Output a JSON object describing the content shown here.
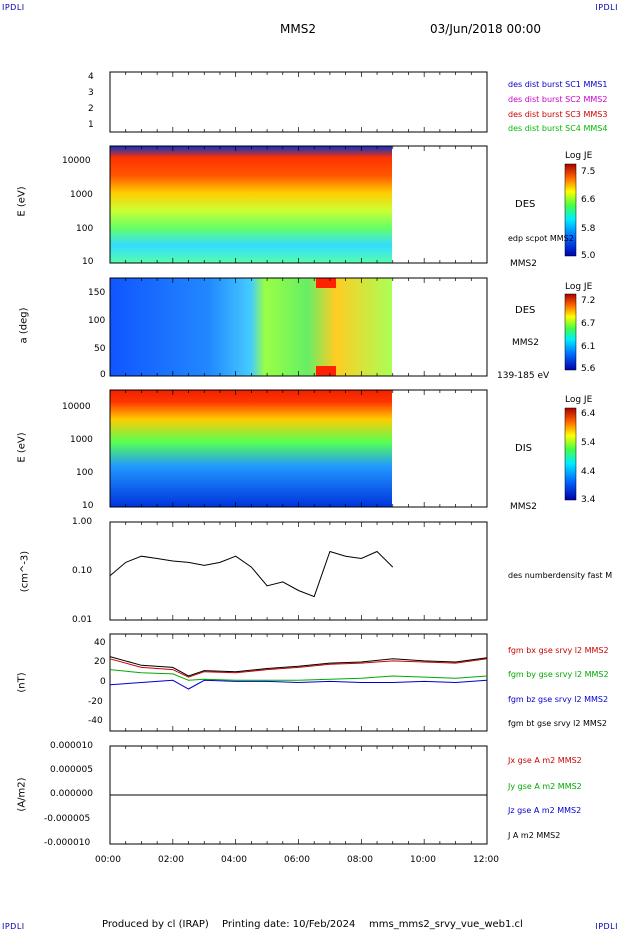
{
  "corners": {
    "tl": "IPDLI",
    "tr": "IPDLI",
    "bl": "IPDLI",
    "br": "IPDLI"
  },
  "header": {
    "spacecraft": "MMS2",
    "date": "03/Jun/2018 00:00"
  },
  "footer": {
    "produced": "Produced by cl (IRAP)",
    "printing": "Printing date: 10/Feb/2024",
    "file": "mms_mms2_srvy_vue_web1.cl"
  },
  "panels": {
    "p1": {
      "yticks": [
        "4",
        "3",
        "2",
        "1"
      ],
      "legend": [
        {
          "text": "des dist burst SC1 MMS1",
          "color": "#0000cc"
        },
        {
          "text": "des dist burst SC2 MMS2",
          "color": "#cc00cc"
        },
        {
          "text": "des dist burst SC3 MMS3",
          "color": "#cc0000"
        },
        {
          "text": "des dist burst SC4 MMS4",
          "color": "#00bb00"
        }
      ]
    },
    "p2": {
      "ylabel": "E (eV)",
      "yticks": [
        "10000",
        "1000",
        "100",
        "10"
      ],
      "label1": "DES",
      "label2": "edp scpot MMS2",
      "label3": "MMS2",
      "cbar": {
        "title": "Log JE",
        "ticks": [
          "7.5",
          "6.6",
          "5.8",
          "5.0"
        ]
      }
    },
    "p3": {
      "ylabel": "a (deg)",
      "yticks": [
        "150",
        "100",
        "50",
        "0"
      ],
      "label1": "DES",
      "label2": "MMS2",
      "label3": "139-185 eV",
      "cbar": {
        "title": "Log JE",
        "ticks": [
          "7.2",
          "6.7",
          "6.1",
          "5.6"
        ]
      }
    },
    "p4": {
      "ylabel": "E (eV)",
      "yticks": [
        "10000",
        "1000",
        "100",
        "10"
      ],
      "label1": "DIS",
      "label2": "MMS2",
      "cbar": {
        "title": "Log JE",
        "ticks": [
          "6.4",
          "5.4",
          "4.4",
          "3.4"
        ]
      }
    },
    "p5": {
      "ylabel": "(cm^-3)",
      "yticks": [
        "1.00",
        "0.10",
        "0.01"
      ],
      "label1": "des numberdensity fast M"
    },
    "p6": {
      "ylabel": "(nT)",
      "yticks": [
        "40",
        "20",
        "0",
        "-20",
        "-40"
      ],
      "legend": [
        {
          "text": "fgm bx gse srvy l2 MMS2",
          "color": "#cc0000"
        },
        {
          "text": "fgm by gse srvy l2 MMS2",
          "color": "#00aa00"
        },
        {
          "text": "fgm bz gse srvy l2 MMS2",
          "color": "#0000cc"
        },
        {
          "text": "fgm bt gse srvy l2 MMS2",
          "color": "#000000"
        }
      ]
    },
    "p7": {
      "ylabel": "(A/m2)",
      "yticks": [
        "0.000010",
        "0.000005",
        "0.000000",
        "-0.000005",
        "-0.000010"
      ],
      "legend": [
        {
          "text": "Jx gse A m2 MMS2",
          "color": "#cc0000"
        },
        {
          "text": "Jy gse A m2 MMS2",
          "color": "#00aa00"
        },
        {
          "text": "Jz gse A m2 MMS2",
          "color": "#0000cc"
        },
        {
          "text": "J A m2 MMS2",
          "color": "#000000"
        }
      ]
    }
  },
  "xaxis": {
    "ticks": [
      "00:00",
      "02:00",
      "04:00",
      "06:00",
      "08:00",
      "10:00",
      "12:00"
    ]
  },
  "chart_data": {
    "type": "line",
    "x_hours": [
      0,
      0.5,
      1,
      1.5,
      2,
      2.5,
      3,
      3.5,
      4,
      4.5,
      5,
      5.5,
      6,
      6.5,
      7,
      7.5,
      8,
      8.5,
      9
    ],
    "density_cm3": [
      0.08,
      0.15,
      0.2,
      0.18,
      0.16,
      0.15,
      0.13,
      0.15,
      0.2,
      0.12,
      0.05,
      0.06,
      0.04,
      0.03,
      0.25,
      0.2,
      0.18,
      0.25,
      0.12
    ],
    "series": [
      {
        "name": "fgm bx gse srvy l2 MMS2",
        "x_hours": [
          0,
          1,
          2,
          2.5,
          3,
          4,
          5,
          6,
          7,
          8,
          9,
          10,
          11,
          12
        ],
        "values": [
          22,
          14,
          12,
          5,
          10,
          9,
          12,
          14,
          17,
          18,
          20,
          19,
          18,
          22
        ]
      },
      {
        "name": "fgm by gse srvy l2 MMS2",
        "x_hours": [
          0,
          1,
          2,
          2.5,
          3,
          4,
          5,
          6,
          7,
          8,
          9,
          10,
          11,
          12
        ],
        "values": [
          12,
          9,
          8,
          2,
          3,
          2,
          2,
          2,
          3,
          4,
          6,
          5,
          4,
          6
        ]
      },
      {
        "name": "fgm bz gse srvy l2 MMS2",
        "x_hours": [
          0,
          1,
          2,
          2.5,
          3,
          4,
          5,
          6,
          7,
          8,
          9,
          10,
          11,
          12
        ],
        "values": [
          -2,
          0,
          2,
          -6,
          2,
          1,
          1,
          0,
          1,
          0,
          0,
          1,
          0,
          2
        ]
      },
      {
        "name": "fgm bt gse srvy l2 MMS2",
        "x_hours": [
          0,
          1,
          2,
          2.5,
          3,
          4,
          5,
          6,
          7,
          8,
          9,
          10,
          11,
          12
        ],
        "values": [
          24,
          16,
          14,
          6,
          11,
          10,
          13,
          15,
          18,
          19,
          22,
          20,
          19,
          23
        ]
      }
    ],
    "xlim": [
      0,
      12
    ],
    "density_ylim": [
      0.01,
      1.0
    ],
    "b_ylim": [
      -45,
      45
    ],
    "j_ylim": [
      -1e-05,
      1e-05
    ]
  }
}
